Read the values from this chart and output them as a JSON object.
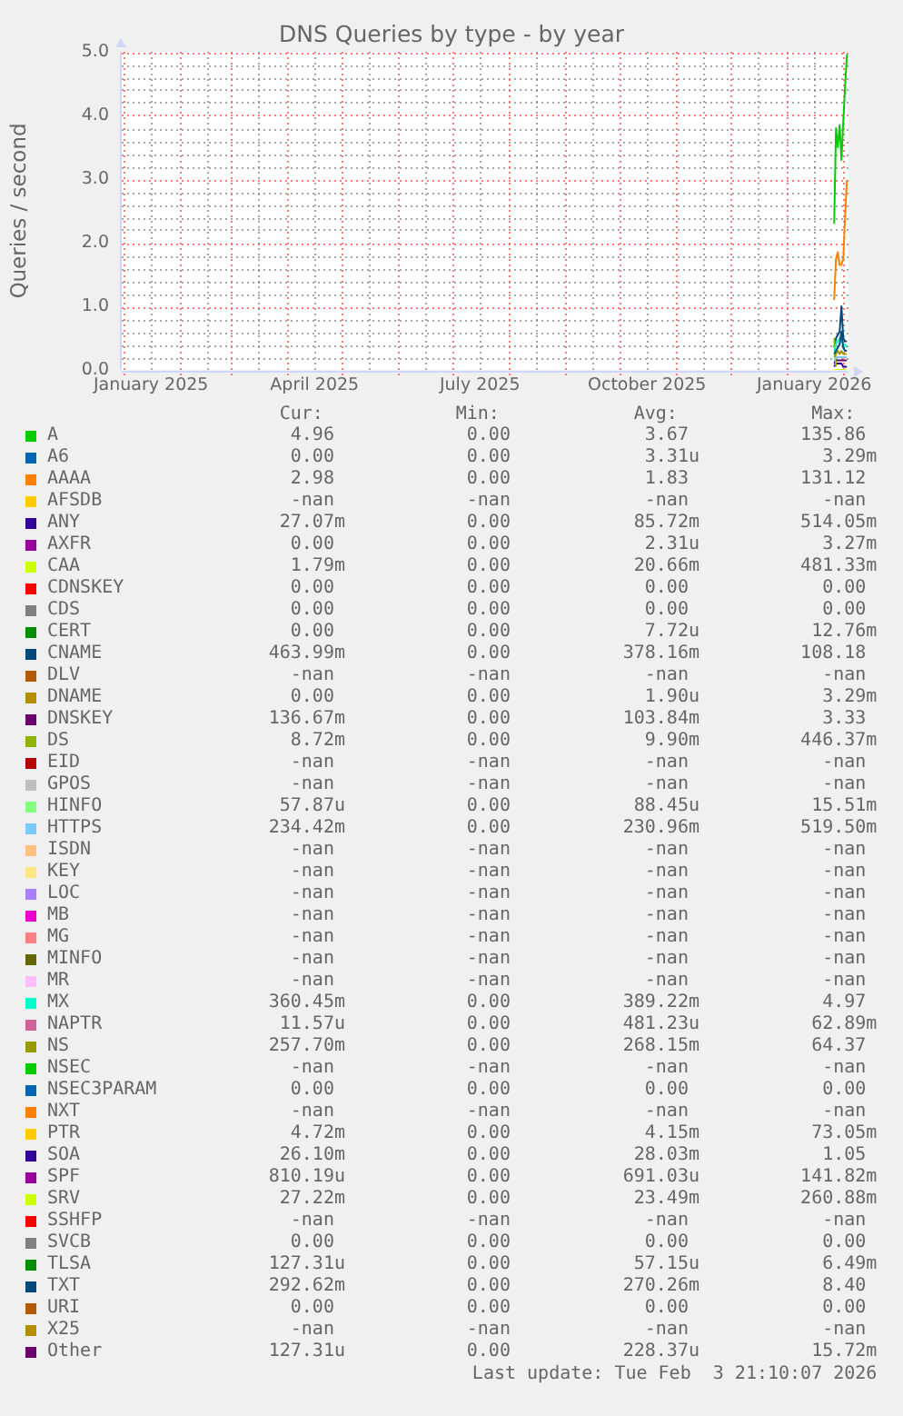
{
  "chart_data": {
    "type": "line",
    "title": "DNS Queries by type - by year",
    "ylabel": "Queries / second",
    "x": [
      "2026-01-27",
      "2026-01-28",
      "2026-01-29",
      "2026-01-30",
      "2026-01-31",
      "2026-02-01",
      "2026-02-02",
      "2026-02-03"
    ],
    "xlim": [
      "2024-12-30T21:10",
      "2026-02-03T21:10"
    ],
    "xticks": [
      {
        "value": "2025-01-01",
        "label": null
      },
      {
        "value": "2025-01-16",
        "label": "January 2025"
      },
      {
        "value": "2025-02-01",
        "label": null
      },
      {
        "value": "2025-02-16",
        "label": null
      },
      {
        "value": "2025-03-01",
        "label": null
      },
      {
        "value": "2025-03-16",
        "label": null
      },
      {
        "value": "2025-04-01",
        "label": null
      },
      {
        "value": "2025-04-16",
        "label": "April 2025"
      },
      {
        "value": "2025-05-01",
        "label": null
      },
      {
        "value": "2025-05-16",
        "label": null
      },
      {
        "value": "2025-06-01",
        "label": null
      },
      {
        "value": "2025-06-16",
        "label": null
      },
      {
        "value": "2025-07-01",
        "label": null
      },
      {
        "value": "2025-07-16",
        "label": "July 2025"
      },
      {
        "value": "2025-08-01",
        "label": null
      },
      {
        "value": "2025-08-16",
        "label": null
      },
      {
        "value": "2025-09-01",
        "label": null
      },
      {
        "value": "2025-09-16",
        "label": null
      },
      {
        "value": "2025-10-01",
        "label": null
      },
      {
        "value": "2025-10-16",
        "label": "October 2025"
      },
      {
        "value": "2025-11-01",
        "label": null
      },
      {
        "value": "2025-11-16",
        "label": null
      },
      {
        "value": "2025-12-01",
        "label": null
      },
      {
        "value": "2025-12-16",
        "label": null
      },
      {
        "value": "2026-01-01",
        "label": null
      },
      {
        "value": "2026-01-16",
        "label": "January 2026"
      },
      {
        "value": "2026-02-01",
        "label": null
      }
    ],
    "ylim": [
      0,
      5
    ],
    "yticks": [
      {
        "value": 0,
        "label": "0.0"
      },
      {
        "value": 0.2,
        "label": null
      },
      {
        "value": 0.4,
        "label": null
      },
      {
        "value": 0.6,
        "label": null
      },
      {
        "value": 0.8,
        "label": null
      },
      {
        "value": 1,
        "label": "1.0"
      },
      {
        "value": 1.2,
        "label": null
      },
      {
        "value": 1.4,
        "label": null
      },
      {
        "value": 1.6,
        "label": null
      },
      {
        "value": 1.8,
        "label": null
      },
      {
        "value": 2,
        "label": "2.0"
      },
      {
        "value": 2.2,
        "label": null
      },
      {
        "value": 2.4,
        "label": null
      },
      {
        "value": 2.6,
        "label": null
      },
      {
        "value": 2.8,
        "label": null
      },
      {
        "value": 3,
        "label": "3.0"
      },
      {
        "value": 3.2,
        "label": null
      },
      {
        "value": 3.4,
        "label": null
      },
      {
        "value": 3.6,
        "label": null
      },
      {
        "value": 3.8,
        "label": null
      },
      {
        "value": 4,
        "label": "4.0"
      },
      {
        "value": 4.2,
        "label": null
      },
      {
        "value": 4.4,
        "label": null
      },
      {
        "value": 4.6,
        "label": null
      },
      {
        "value": 4.8,
        "label": null
      },
      {
        "value": 5,
        "label": "5.0"
      }
    ],
    "grid": true,
    "legend": "bottom",
    "series": [
      {
        "name": "A",
        "color": "#00cc00",
        "values": [
          2.3,
          3.8,
          3.5,
          3.85,
          3.3,
          3.9,
          4.45,
          4.96
        ]
      },
      {
        "name": "A6",
        "color": "#0066b3",
        "values": [
          null,
          null,
          null,
          null,
          null,
          null,
          null,
          null
        ]
      },
      {
        "name": "AAAA",
        "color": "#ff8000",
        "values": [
          1.1,
          1.75,
          1.85,
          1.65,
          1.65,
          1.75,
          2.4,
          2.98
        ]
      },
      {
        "name": "AFSDB",
        "color": "#ffcc00",
        "values": [
          null,
          null,
          null,
          null,
          null,
          null,
          null,
          null
        ]
      },
      {
        "name": "ANY",
        "color": "#330099",
        "values": [
          0.05,
          0.1,
          0.1,
          0.1,
          0.1,
          0.05,
          0.05,
          0.05
        ]
      },
      {
        "name": "AXFR",
        "color": "#990099",
        "values": [
          null,
          null,
          null,
          null,
          null,
          null,
          null,
          null
        ]
      },
      {
        "name": "CAA",
        "color": "#ccff00",
        "values": [
          null,
          null,
          null,
          null,
          null,
          null,
          null,
          null
        ]
      },
      {
        "name": "CDNSKEY",
        "color": "#ff0000",
        "values": [
          null,
          null,
          null,
          null,
          null,
          null,
          null,
          null
        ]
      },
      {
        "name": "CDS",
        "color": "#808080",
        "values": [
          null,
          null,
          null,
          null,
          null,
          null,
          null,
          null
        ]
      },
      {
        "name": "CERT",
        "color": "#008f00",
        "values": [
          null,
          null,
          null,
          null,
          null,
          null,
          null,
          null
        ]
      },
      {
        "name": "CNAME",
        "color": "#00487d",
        "values": [
          0.35,
          0.5,
          0.55,
          0.6,
          1.0,
          0.5,
          0.45,
          0.45
        ]
      },
      {
        "name": "DLV",
        "color": "#b35a00",
        "values": [
          null,
          null,
          null,
          null,
          null,
          null,
          null,
          null
        ]
      },
      {
        "name": "DNAME",
        "color": "#b38f00",
        "values": [
          null,
          null,
          null,
          null,
          null,
          null,
          null,
          null
        ]
      },
      {
        "name": "DNSKEY",
        "color": "#6b006b",
        "values": [
          0.1,
          0.15,
          0.15,
          0.15,
          0.15,
          0.15,
          0.15,
          0.15
        ]
      },
      {
        "name": "DS",
        "color": "#8fb300",
        "values": [
          0.5,
          0.05,
          null,
          null,
          null,
          null,
          null,
          null
        ]
      },
      {
        "name": "EID",
        "color": "#b30000",
        "values": [
          null,
          null,
          null,
          null,
          null,
          null,
          null,
          null
        ]
      },
      {
        "name": "GPOS",
        "color": "#bebebe",
        "values": [
          null,
          null,
          null,
          null,
          null,
          null,
          null,
          null
        ]
      },
      {
        "name": "HINFO",
        "color": "#80ff80",
        "values": [
          null,
          null,
          null,
          null,
          null,
          null,
          null,
          null
        ]
      },
      {
        "name": "HTTPS",
        "color": "#80c9ff",
        "values": [
          0.15,
          0.2,
          0.2,
          0.2,
          0.2,
          0.2,
          0.2,
          0.2
        ]
      },
      {
        "name": "ISDN",
        "color": "#ffc080",
        "values": [
          null,
          null,
          null,
          null,
          null,
          null,
          null,
          null
        ]
      },
      {
        "name": "KEY",
        "color": "#ffe680",
        "values": [
          null,
          null,
          null,
          null,
          null,
          null,
          null,
          null
        ]
      },
      {
        "name": "LOC",
        "color": "#aa80ff",
        "values": [
          null,
          null,
          null,
          null,
          null,
          null,
          null,
          null
        ]
      },
      {
        "name": "MB",
        "color": "#ee00cc",
        "values": [
          null,
          null,
          null,
          null,
          null,
          null,
          null,
          null
        ]
      },
      {
        "name": "MG",
        "color": "#ff8080",
        "values": [
          null,
          null,
          null,
          null,
          null,
          null,
          null,
          null
        ]
      },
      {
        "name": "MINFO",
        "color": "#666600",
        "values": [
          null,
          null,
          null,
          null,
          null,
          null,
          null,
          null
        ]
      },
      {
        "name": "MR",
        "color": "#ffbfff",
        "values": [
          null,
          null,
          null,
          null,
          null,
          null,
          null,
          null
        ]
      },
      {
        "name": "MX",
        "color": "#00ffcc",
        "values": [
          0.3,
          0.4,
          0.45,
          0.5,
          0.45,
          0.4,
          0.4,
          0.35
        ]
      },
      {
        "name": "NAPTR",
        "color": "#cc6699",
        "values": [
          null,
          null,
          null,
          null,
          null,
          null,
          null,
          null
        ]
      },
      {
        "name": "NS",
        "color": "#999900",
        "values": [
          0.2,
          0.25,
          0.3,
          0.25,
          0.3,
          0.25,
          0.25,
          0.25
        ]
      },
      {
        "name": "NSEC",
        "color": "#00cc00",
        "values": [
          null,
          null,
          null,
          null,
          null,
          null,
          null,
          null
        ]
      },
      {
        "name": "NSEC3PARAM",
        "color": "#0066b3",
        "values": [
          null,
          null,
          null,
          null,
          null,
          null,
          null,
          null
        ]
      },
      {
        "name": "NXT",
        "color": "#ff8000",
        "values": [
          null,
          null,
          null,
          null,
          null,
          null,
          null,
          null
        ]
      },
      {
        "name": "PTR",
        "color": "#ffcc00",
        "values": [
          null,
          null,
          null,
          null,
          null,
          null,
          null,
          null
        ]
      },
      {
        "name": "SOA",
        "color": "#330099",
        "values": [
          null,
          null,
          null,
          null,
          null,
          null,
          null,
          null
        ]
      },
      {
        "name": "SPF",
        "color": "#990099",
        "values": [
          null,
          null,
          null,
          null,
          null,
          null,
          null,
          null
        ]
      },
      {
        "name": "SRV",
        "color": "#ccff00",
        "values": [
          0,
          0,
          0,
          0,
          0,
          0,
          0,
          0
        ]
      },
      {
        "name": "SSHFP",
        "color": "#ff0000",
        "values": [
          null,
          null,
          null,
          null,
          null,
          null,
          null,
          null
        ]
      },
      {
        "name": "SVCB",
        "color": "#808080",
        "values": [
          null,
          null,
          null,
          null,
          null,
          null,
          null,
          null
        ]
      },
      {
        "name": "TLSA",
        "color": "#008f00",
        "values": [
          null,
          null,
          null,
          null,
          null,
          null,
          null,
          null
        ]
      },
      {
        "name": "TXT",
        "color": "#00487d",
        "values": [
          0.25,
          0.3,
          0.35,
          0.4,
          0.6,
          0.35,
          0.3,
          0.3
        ]
      },
      {
        "name": "URI",
        "color": "#b35a00",
        "values": [
          null,
          null,
          null,
          null,
          null,
          null,
          null,
          null
        ]
      },
      {
        "name": "X25",
        "color": "#b38f00",
        "values": [
          null,
          null,
          null,
          null,
          null,
          null,
          null,
          null
        ]
      },
      {
        "name": "Other",
        "color": "#6b006b",
        "values": [
          null,
          null,
          null,
          null,
          null,
          null,
          null,
          null
        ]
      }
    ],
    "annotations": [
      "Cur:",
      "Min:",
      "Avg:",
      "Max:",
      "4.96",
      "0.00",
      "3.67",
      "135.86",
      "0.00",
      "0.00",
      "3.31u",
      "3.29m",
      "2.98",
      "0.00",
      "1.83",
      "131.12",
      "-nan",
      "-nan",
      "-nan",
      "-nan",
      "27.07m",
      "0.00",
      "85.72m",
      "514.05m",
      "0.00",
      "0.00",
      "2.31u",
      "3.27m",
      "1.79m",
      "0.00",
      "20.66m",
      "481.33m",
      "0.00",
      "0.00",
      "0.00",
      "0.00",
      "0.00",
      "0.00",
      "0.00",
      "0.00",
      "0.00",
      "0.00",
      "7.72u",
      "12.76m",
      "463.99m",
      "0.00",
      "378.16m",
      "108.18",
      "-nan",
      "-nan",
      "-nan",
      "-nan",
      "0.00",
      "0.00",
      "1.90u",
      "3.29m",
      "136.67m",
      "0.00",
      "103.84m",
      "3.33",
      "8.72m",
      "0.00",
      "9.90m",
      "446.37m",
      "-nan",
      "-nan",
      "-nan",
      "-nan",
      "-nan",
      "-nan",
      "-nan",
      "-nan",
      "57.87u",
      "0.00",
      "88.45u",
      "15.51m",
      "234.42m",
      "0.00",
      "230.96m",
      "519.50m",
      "-nan",
      "-nan",
      "-nan",
      "-nan",
      "-nan",
      "-nan",
      "-nan",
      "-nan",
      "-nan",
      "-nan",
      "-nan",
      "-nan",
      "-nan",
      "-nan",
      "-nan",
      "-nan",
      "-nan",
      "-nan",
      "-nan",
      "-nan",
      "-nan",
      "-nan",
      "-nan",
      "-nan",
      "-nan",
      "-nan",
      "-nan",
      "-nan",
      "360.45m",
      "0.00",
      "389.22m",
      "4.97",
      "11.57u",
      "0.00",
      "481.23u",
      "62.89m",
      "257.70m",
      "0.00",
      "268.15m",
      "64.37",
      "-nan",
      "-nan",
      "-nan",
      "-nan",
      "0.00",
      "0.00",
      "0.00",
      "0.00",
      "-nan",
      "-nan",
      "-nan",
      "-nan",
      "4.72m",
      "0.00",
      "4.15m",
      "73.05m",
      "26.10m",
      "0.00",
      "28.03m",
      "1.05",
      "810.19u",
      "0.00",
      "691.03u",
      "141.82m",
      "27.22m",
      "0.00",
      "23.49m",
      "260.88m",
      "-nan",
      "-nan",
      "-nan",
      "-nan",
      "0.00",
      "0.00",
      "0.00",
      "0.00",
      "127.31u",
      "0.00",
      "57.15u",
      "6.49m",
      "292.62m",
      "0.00",
      "270.26m",
      "8.40",
      "0.00",
      "0.00",
      "0.00",
      "0.00",
      "-nan",
      "-nan",
      "-nan",
      "-nan",
      "127.31u",
      "0.00",
      "228.37u",
      "15.72m",
      "Last update: Tue Feb  3 21:10:07 2026"
    ]
  }
}
